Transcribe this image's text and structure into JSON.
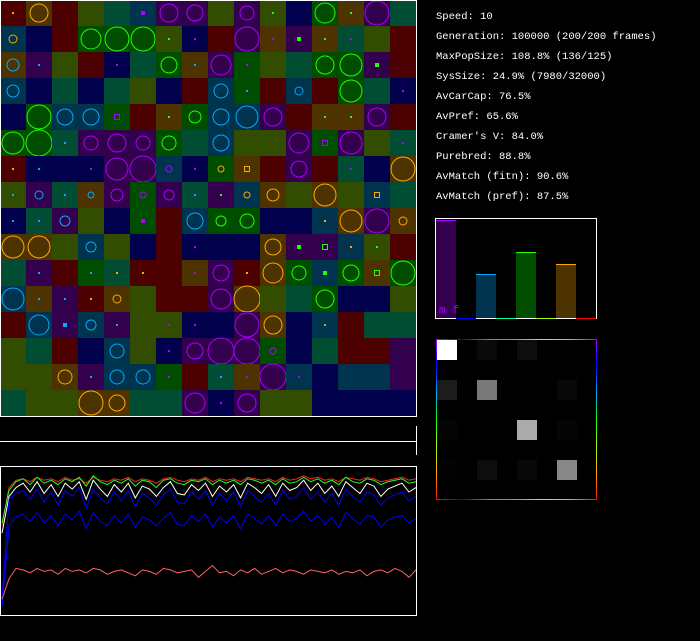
{
  "stats": [
    "Speed: 10",
    "Generation: 100000 (200/200 frames)",
    "MaxPopSize: 108.8% (136/125)",
    "SysSize: 24.9% (7980/32000)",
    "AvCarCap: 76.5%",
    "AvPref: 65.6%",
    "Cramer's V: 84.0%",
    "Purebred: 88.8%",
    "AvMatch (fitn): 90.6%",
    "AvMatch (pref): 87.5%"
  ],
  "colors": {
    "bg": {
      "R": "#4d0000",
      "O": "#4d3300",
      "Y": "#334d00",
      "G": "#004d00",
      "T": "#004d33",
      "B": "#00334d",
      "N": "#00004d",
      "P": "#33004d"
    },
    "marker": {
      "o": "#ffaa00",
      "g": "#22ff00",
      "b": "#00aaff",
      "p": "#aa00ff"
    }
  },
  "grid": [
    [
      "R od",
      "O o9",
      "R",
      "Y",
      "T",
      "B pD",
      "P p9",
      "P p8",
      "Y",
      "P p7",
      "Y gd",
      "N",
      "G g10",
      "O gd",
      "P p12",
      "T"
    ],
    [
      "B o4",
      "N",
      "R",
      "G g10",
      "G g12",
      "G g12",
      "Y gd",
      "N pd",
      "R",
      "P p12",
      "O pd",
      "P gD",
      "O gd",
      "T pd",
      "Y",
      "R"
    ],
    [
      "O b6",
      "P bd",
      "Y",
      "R",
      "N pd",
      "T",
      "G g8",
      "O bd",
      "P p10",
      "G pd",
      "Y",
      "T",
      "G g9",
      "G g11",
      "P gD",
      "R"
    ],
    [
      "B b6",
      "N",
      "T",
      "N",
      "T",
      "Y",
      "N",
      "R",
      "B b7",
      "G bd",
      "R",
      "B b4",
      "R",
      "G g11",
      "T",
      "N pd"
    ],
    [
      "N",
      "G g12",
      "B b8",
      "B b8",
      "G ps",
      "R",
      "O gd",
      "G g6",
      "B b8",
      "B b11",
      "P p9",
      "R",
      "O gd",
      "O gd",
      "P p9",
      "R"
    ],
    [
      "G g11",
      "G g13",
      "T bd",
      "P p7",
      "P p9",
      "P p7",
      "G g7",
      "T",
      "B b8",
      "Y",
      "Y",
      "P p10",
      "G ps",
      "P p11",
      "Y",
      "T pd"
    ],
    [
      "R od",
      "N bd",
      "N",
      "N pd",
      "P p11",
      "P p13",
      "B p3",
      "N pd",
      "G o3",
      "O os",
      "R",
      "P p8",
      "R",
      "T pd",
      "N",
      "O o12"
    ],
    [
      "Y bd",
      "P b4",
      "T bd",
      "O b3",
      "P p6",
      "G p3",
      "P p5",
      "T bd",
      "P gd",
      "B o3",
      "O o6",
      "Y",
      "O o11",
      "Y",
      "B os",
      "T"
    ],
    [
      "N bd",
      "T bd",
      "P b5",
      "Y",
      "N",
      "G pD",
      "R",
      "B b8",
      "G g5",
      "G g7",
      "N",
      "N",
      "B od",
      "O o11",
      "P p12",
      "O o4"
    ],
    [
      "O o11",
      "O o11",
      "Y",
      "B b5",
      "Y",
      "N",
      "R",
      "N pd",
      "N",
      "N",
      "O o8",
      "P gD",
      "P gs",
      "B od",
      "Y gd",
      "R"
    ],
    [
      "T",
      "P bd",
      "R",
      "G bd",
      "T od",
      "R od",
      "R",
      "O pd",
      "P p8",
      "R od",
      "O o10",
      "G g7",
      "B gD",
      "G g8",
      "O gs",
      "G g12"
    ],
    [
      "B b11",
      "O bd",
      "P bd",
      "R od",
      "O o4",
      "Y",
      "R",
      "R",
      "P p10",
      "O o13",
      "Y",
      "T",
      "G g9",
      "N",
      "N",
      "Y"
    ],
    [
      "R",
      "B b10",
      "P bD",
      "B b5",
      "P bd",
      "Y",
      "Y pd",
      "N pd",
      "N",
      "P p12",
      "O o9",
      "N",
      "B gd",
      "R",
      "T",
      "T"
    ],
    [
      "Y",
      "T",
      "R",
      "N",
      "B b7",
      "Y",
      "N pd",
      "P p8",
      "P p13",
      "P p13",
      "G p3",
      "N",
      "T",
      "R",
      "R",
      "P"
    ],
    [
      "Y",
      "Y",
      "O o7",
      "P bd",
      "B b7",
      "B b7",
      "G pd",
      "R",
      "T bd",
      "O pd",
      "P p13",
      "B pd",
      "N",
      "B",
      "B",
      "P"
    ],
    [
      "T",
      "Y",
      "Y",
      "O o12",
      "O o8",
      "T",
      "T",
      "P p10",
      "N pd",
      "P p9",
      "Y",
      "Y",
      "N",
      "N",
      "N",
      "N"
    ]
  ],
  "bar_chart": {
    "type": "bar",
    "label": "m f",
    "values": [
      1.0,
      0.45,
      0.67,
      0.55
    ],
    "fill_colors": [
      "#33004d",
      "#00334d",
      "#004d00",
      "#4d3300"
    ],
    "top_colors": [
      "#aa00ff",
      "#00aaff",
      "#22ff00",
      "#ffaa00"
    ],
    "gap_colors": [
      "#0000ff",
      "#00ffaa",
      "#aaff00",
      "#ff0000"
    ]
  },
  "heatmap": {
    "type": "heatmap",
    "values": [
      [
        1.0,
        0.04,
        0.05,
        0.0
      ],
      [
        0.11,
        0.47,
        0.0,
        0.03
      ],
      [
        0.02,
        0.0,
        0.67,
        0.02
      ],
      [
        0.01,
        0.05,
        0.03,
        0.53
      ]
    ]
  },
  "chart_data": {
    "type": "line",
    "ylim": [
      0,
      1
    ],
    "grid": false,
    "series": [
      {
        "color": "#ff2020",
        "values": [
          0.6,
          0.86,
          0.91,
          0.92,
          0.9,
          0.93,
          0.91,
          0.92,
          0.9,
          0.93,
          0.91,
          0.92,
          0.89,
          0.93,
          0.91,
          0.9,
          0.92,
          0.91,
          0.93,
          0.9,
          0.92,
          0.91,
          0.89,
          0.92,
          0.93,
          0.91,
          0.9,
          0.92,
          0.91,
          0.93,
          0.9,
          0.92,
          0.91,
          0.92,
          0.9,
          0.93,
          0.92,
          0.91,
          0.92,
          0.9,
          0.93,
          0.91,
          0.92,
          0.94,
          0.92,
          0.93,
          0.91,
          0.92,
          0.9,
          0.93,
          0.92,
          0.91,
          0.93,
          0.92,
          0.9,
          0.91,
          0.92,
          0.93,
          0.91,
          0.92
        ]
      },
      {
        "color": "#22ff22",
        "values": [
          0.62,
          0.84,
          0.9,
          0.92,
          0.88,
          0.93,
          0.89,
          0.91,
          0.88,
          0.92,
          0.9,
          0.93,
          0.87,
          0.94,
          0.9,
          0.88,
          0.91,
          0.89,
          0.92,
          0.87,
          0.91,
          0.9,
          0.86,
          0.91,
          0.92,
          0.89,
          0.88,
          0.91,
          0.9,
          0.92,
          0.88,
          0.91,
          0.89,
          0.91,
          0.88,
          0.92,
          0.91,
          0.89,
          0.91,
          0.88,
          0.92,
          0.89,
          0.9,
          0.93,
          0.9,
          0.92,
          0.89,
          0.91,
          0.88,
          0.93,
          0.9,
          0.89,
          0.92,
          0.91,
          0.88,
          0.9,
          0.91,
          0.92,
          0.89,
          0.9
        ]
      },
      {
        "color": "#ffffff",
        "values": [
          0.55,
          0.8,
          0.86,
          0.89,
          0.83,
          0.9,
          0.82,
          0.88,
          0.8,
          0.89,
          0.85,
          0.9,
          0.78,
          0.91,
          0.85,
          0.8,
          0.88,
          0.83,
          0.89,
          0.79,
          0.87,
          0.85,
          0.8,
          0.86,
          0.9,
          0.82,
          0.81,
          0.88,
          0.84,
          0.89,
          0.8,
          0.87,
          0.83,
          0.88,
          0.79,
          0.89,
          0.86,
          0.82,
          0.88,
          0.8,
          0.89,
          0.84,
          0.86,
          0.91,
          0.84,
          0.89,
          0.82,
          0.87,
          0.8,
          0.9,
          0.86,
          0.82,
          0.89,
          0.87,
          0.8,
          0.85,
          0.87,
          0.89,
          0.83,
          0.86
        ]
      },
      {
        "color": "#0000ff",
        "values": [
          0.1,
          0.78,
          0.82,
          0.84,
          0.78,
          0.85,
          0.76,
          0.83,
          0.74,
          0.84,
          0.8,
          0.86,
          0.72,
          0.85,
          0.79,
          0.75,
          0.83,
          0.77,
          0.84,
          0.73,
          0.82,
          0.79,
          0.74,
          0.81,
          0.85,
          0.76,
          0.75,
          0.83,
          0.78,
          0.84,
          0.74,
          0.82,
          0.77,
          0.83,
          0.73,
          0.84,
          0.8,
          0.76,
          0.82,
          0.74,
          0.84,
          0.78,
          0.8,
          0.86,
          0.78,
          0.83,
          0.76,
          0.82,
          0.74,
          0.85,
          0.8,
          0.76,
          0.83,
          0.81,
          0.74,
          0.79,
          0.81,
          0.83,
          0.77,
          0.8
        ]
      },
      {
        "color": "#0000ff",
        "values": [
          0.05,
          0.6,
          0.66,
          0.68,
          0.63,
          0.69,
          0.62,
          0.67,
          0.6,
          0.68,
          0.64,
          0.7,
          0.58,
          0.69,
          0.63,
          0.6,
          0.67,
          0.62,
          0.68,
          0.59,
          0.66,
          0.64,
          0.6,
          0.65,
          0.69,
          0.61,
          0.6,
          0.67,
          0.63,
          0.68,
          0.59,
          0.66,
          0.62,
          0.67,
          0.58,
          0.68,
          0.65,
          0.61,
          0.67,
          0.6,
          0.68,
          0.63,
          0.65,
          0.7,
          0.63,
          0.67,
          0.61,
          0.66,
          0.59,
          0.69,
          0.65,
          0.61,
          0.67,
          0.66,
          0.59,
          0.64,
          0.66,
          0.67,
          0.62,
          0.65
        ]
      },
      {
        "color": "#ff6060",
        "values": [
          0.1,
          0.24,
          0.31,
          0.3,
          0.28,
          0.31,
          0.29,
          0.3,
          0.27,
          0.31,
          0.29,
          0.3,
          0.28,
          0.31,
          0.3,
          0.27,
          0.29,
          0.3,
          0.28,
          0.26,
          0.3,
          0.29,
          0.27,
          0.31,
          0.3,
          0.28,
          0.29,
          0.3,
          0.25,
          0.29,
          0.33,
          0.28,
          0.29,
          0.26,
          0.3,
          0.28,
          0.31,
          0.27,
          0.29,
          0.31,
          0.28,
          0.3,
          0.29,
          0.27,
          0.3,
          0.29,
          0.28,
          0.3,
          0.27,
          0.29,
          0.28,
          0.3,
          0.26,
          0.29,
          0.3,
          0.28,
          0.31,
          0.29,
          0.25,
          0.3
        ]
      }
    ]
  }
}
